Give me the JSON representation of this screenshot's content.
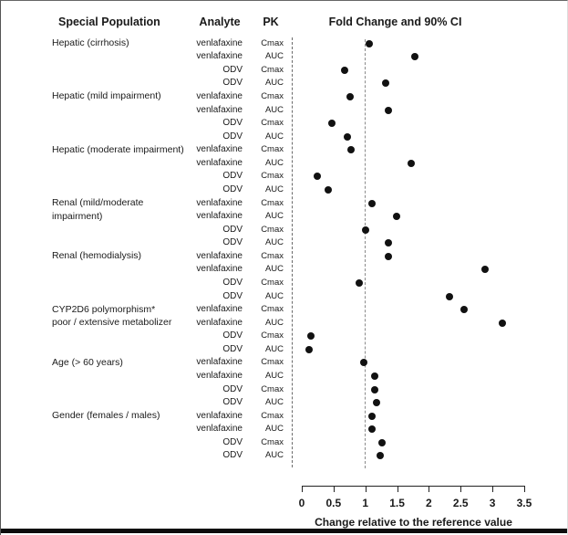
{
  "figure": {
    "columns": {
      "population": "Special Population",
      "analyte": "Analyte",
      "pk": "PK"
    },
    "plot_title": "Fold Change and 90% CI"
  },
  "chart_data": {
    "type": "scatter",
    "title": "Fold Change and 90% CI",
    "xlabel": "Change relative to the reference value",
    "xlim": [
      0,
      3.5
    ],
    "xticks": [
      "0",
      "0.5",
      "1",
      "1.5",
      "2",
      "2.5",
      "3",
      "3.5"
    ],
    "reference_line": 1.0,
    "grid": false,
    "marker": "filled-black-circle",
    "rows": [
      {
        "population": "Hepatic (cirrhosis)",
        "analyte": "venlafaxine",
        "pk": "Cmax",
        "fold_change": 1.06
      },
      {
        "population": "",
        "analyte": "venlafaxine",
        "pk": "AUC",
        "fold_change": 1.78
      },
      {
        "population": "",
        "analyte": "ODV",
        "pk": "Cmax",
        "fold_change": 0.68
      },
      {
        "population": "",
        "analyte": "ODV",
        "pk": "AUC",
        "fold_change": 1.32
      },
      {
        "population": "Hepatic (mild impairment)",
        "analyte": "venlafaxine",
        "pk": "Cmax",
        "fold_change": 0.76
      },
      {
        "population": "",
        "analyte": "venlafaxine",
        "pk": "AUC",
        "fold_change": 1.37
      },
      {
        "population": "",
        "analyte": "ODV",
        "pk": "Cmax",
        "fold_change": 0.48
      },
      {
        "population": "",
        "analyte": "ODV",
        "pk": "AUC",
        "fold_change": 0.72
      },
      {
        "population": "Hepatic (moderate impairment)",
        "analyte": "venlafaxine",
        "pk": "Cmax",
        "fold_change": 0.77
      },
      {
        "population": "",
        "analyte": "venlafaxine",
        "pk": "AUC",
        "fold_change": 1.72
      },
      {
        "population": "",
        "analyte": "ODV",
        "pk": "Cmax",
        "fold_change": 0.25
      },
      {
        "population": "",
        "analyte": "ODV",
        "pk": "AUC",
        "fold_change": 0.41
      },
      {
        "population": "Renal (mild/moderate",
        "analyte": "venlafaxine",
        "pk": "Cmax",
        "fold_change": 1.11
      },
      {
        "population": "impairment)",
        "analyte": "venlafaxine",
        "pk": "AUC",
        "fold_change": 1.49
      },
      {
        "population": "",
        "analyte": "ODV",
        "pk": "Cmax",
        "fold_change": 1.0
      },
      {
        "population": "",
        "analyte": "ODV",
        "pk": "AUC",
        "fold_change": 1.37
      },
      {
        "population": "Renal (hemodialysis)",
        "analyte": "venlafaxine",
        "pk": "Cmax",
        "fold_change": 1.36
      },
      {
        "population": "",
        "analyte": "venlafaxine",
        "pk": "AUC",
        "fold_change": 2.88
      },
      {
        "population": "",
        "analyte": "ODV",
        "pk": "Cmax",
        "fold_change": 0.91
      },
      {
        "population": "",
        "analyte": "ODV",
        "pk": "AUC",
        "fold_change": 2.33
      },
      {
        "population": "CYP2D6 polymorphism*",
        "analyte": "venlafaxine",
        "pk": "Cmax",
        "fold_change": 2.55
      },
      {
        "population": "poor / extensive metabolizer",
        "analyte": "venlafaxine",
        "pk": "AUC",
        "fold_change": 3.16
      },
      {
        "population": "",
        "analyte": "ODV",
        "pk": "Cmax",
        "fold_change": 0.15
      },
      {
        "population": "",
        "analyte": "ODV",
        "pk": "AUC",
        "fold_change": 0.12
      },
      {
        "population": "Age (> 60 years)",
        "analyte": "venlafaxine",
        "pk": "Cmax",
        "fold_change": 0.97
      },
      {
        "population": "",
        "analyte": "venlafaxine",
        "pk": "AUC",
        "fold_change": 1.15
      },
      {
        "population": "",
        "analyte": "ODV",
        "pk": "Cmax",
        "fold_change": 1.15
      },
      {
        "population": "",
        "analyte": "ODV",
        "pk": "AUC",
        "fold_change": 1.17
      },
      {
        "population": "Gender (females / males)",
        "analyte": "venlafaxine",
        "pk": "Cmax",
        "fold_change": 1.11
      },
      {
        "population": "",
        "analyte": "venlafaxine",
        "pk": "AUC",
        "fold_change": 1.11
      },
      {
        "population": "",
        "analyte": "ODV",
        "pk": "Cmax",
        "fold_change": 1.26
      },
      {
        "population": "",
        "analyte": "ODV",
        "pk": "AUC",
        "fold_change": 1.23
      }
    ]
  }
}
